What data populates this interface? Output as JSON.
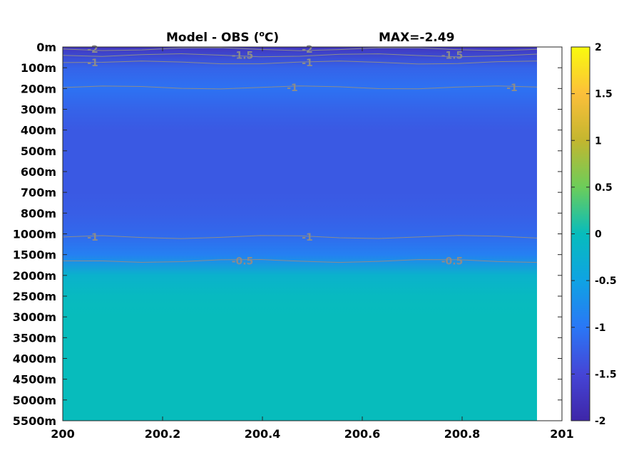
{
  "chart_data": {
    "type": "heatmap",
    "title_left": "Model - OBS (",
    "title_unit_sup": "o",
    "title_unit_tail": "C)",
    "title_right": "MAX=-2.49",
    "x_ticks": [
      "200",
      "200.2",
      "200.4",
      "200.6",
      "200.8",
      "201"
    ],
    "xlim": [
      200,
      201
    ],
    "data_x_end": 200.95,
    "y_ticks": [
      "0m",
      "100m",
      "200m",
      "300m",
      "400m",
      "500m",
      "600m",
      "700m",
      "800m",
      "1000m",
      "1500m",
      "2000m",
      "2500m",
      "3000m",
      "3500m",
      "4000m",
      "4500m",
      "5000m",
      "5500m"
    ],
    "colorbar": {
      "ticks": [
        "2",
        "1.5",
        "1",
        "0.5",
        "0",
        "-0.5",
        "-1",
        "-1.5",
        "-2"
      ],
      "clim": [
        -2,
        2
      ],
      "colormap": "parula"
    },
    "depth_profile": [
      {
        "depth_level": 0,
        "value": -1.75
      },
      {
        "depth_level": 1,
        "value": -1.2
      },
      {
        "depth_level": 2,
        "value": -1.05
      },
      {
        "depth_level": 3,
        "value": -1.2
      },
      {
        "depth_level": 4,
        "value": -1.3
      },
      {
        "depth_level": 5,
        "value": -1.3
      },
      {
        "depth_level": 6,
        "value": -1.3
      },
      {
        "depth_level": 7,
        "value": -1.3
      },
      {
        "depth_level": 8,
        "value": -1.25
      },
      {
        "depth_level": 9,
        "value": -1.15
      },
      {
        "depth_level": 10,
        "value": -0.9
      },
      {
        "depth_level": 11,
        "value": -0.2
      },
      {
        "depth_level": 12,
        "value": -0.05
      },
      {
        "depth_level": 13,
        "value": 0.0
      },
      {
        "depth_level": 14,
        "value": 0.0
      },
      {
        "depth_level": 15,
        "value": 0.0
      },
      {
        "depth_level": 16,
        "value": 0.0
      },
      {
        "depth_level": 17,
        "value": 0.0
      },
      {
        "depth_level": 18,
        "value": 0.0
      }
    ],
    "contours": [
      {
        "level": -2,
        "depth_level": 0.1,
        "labels": [
          {
            "text": "-2",
            "x": 200.06
          },
          {
            "text": "-2",
            "x": 200.49
          }
        ]
      },
      {
        "level": -1.5,
        "depth_level": 0.4,
        "labels": [
          {
            "text": "-1.5",
            "x": 200.36
          },
          {
            "text": "-1.5",
            "x": 200.78
          }
        ]
      },
      {
        "level": -1,
        "depth_level": 0.75,
        "labels": [
          {
            "text": "-1",
            "x": 200.06
          },
          {
            "text": "-1",
            "x": 200.49
          }
        ]
      },
      {
        "level": -1,
        "depth_level": 1.95,
        "labels": [
          {
            "text": "-1",
            "x": 200.46
          },
          {
            "text": "-1",
            "x": 200.9
          }
        ]
      },
      {
        "level": -1,
        "depth_level": 9.15,
        "labels": [
          {
            "text": "-1",
            "x": 200.06
          },
          {
            "text": "-1",
            "x": 200.49
          }
        ]
      },
      {
        "level": -0.5,
        "depth_level": 10.3,
        "labels": [
          {
            "text": "-0.5",
            "x": 200.36
          },
          {
            "text": "-0.5",
            "x": 200.78
          }
        ]
      }
    ]
  }
}
